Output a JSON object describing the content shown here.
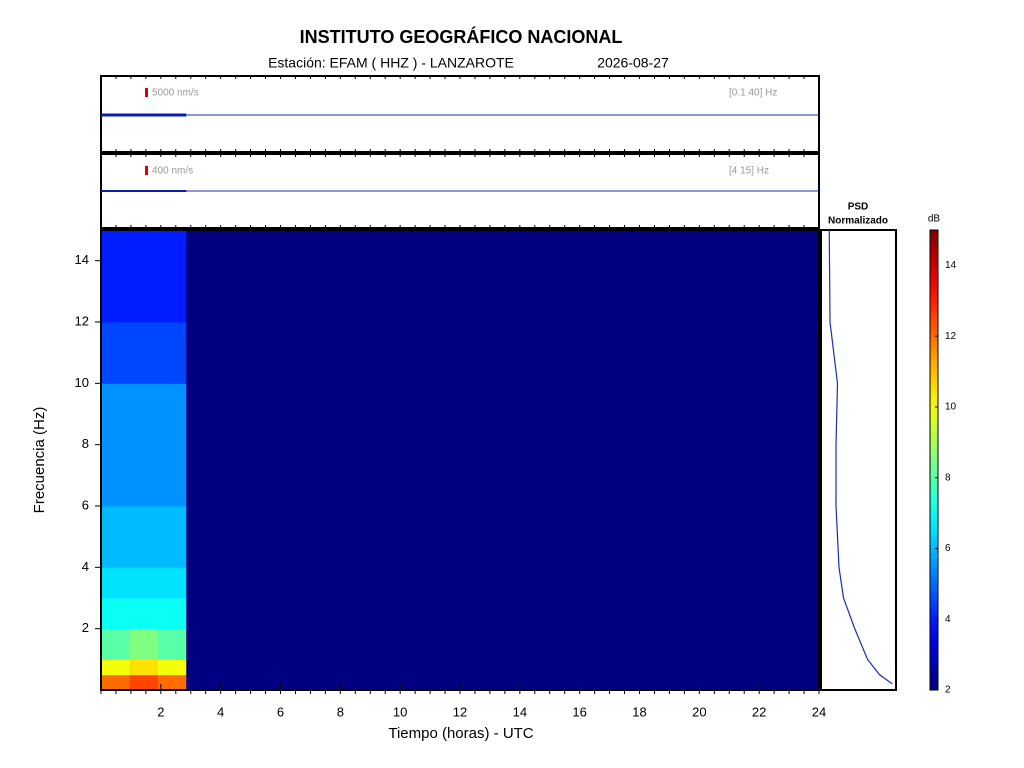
{
  "chart_data": {
    "type": "spectrogram",
    "title": "INSTITUTO GEOGRÁFICO NACIONAL",
    "station": "Estación:  EFAM ( HHZ ) - LANZAROTE",
    "date": "2026-08-27",
    "xlabel": "Tiempo (horas) - UTC",
    "ylabel": "Frecuencia  (Hz)",
    "xlim": [
      0,
      24
    ],
    "xticks": [
      2,
      4,
      6,
      8,
      10,
      12,
      14,
      16,
      18,
      20,
      22,
      24
    ],
    "ylim": [
      0,
      15
    ],
    "yticks": [
      2,
      4,
      6,
      8,
      10,
      12,
      14
    ],
    "time_bins": [
      0,
      0.95,
      1.9,
      2.85,
      24
    ],
    "freq_bins": [
      0,
      0.5,
      1,
      2,
      3,
      4,
      6,
      8,
      10,
      12,
      15
    ],
    "z": [
      [
        12,
        12.5,
        12,
        2
      ],
      [
        10,
        10.5,
        10,
        2
      ],
      [
        8,
        8.5,
        8,
        2
      ],
      [
        7,
        7,
        7,
        2
      ],
      [
        6.5,
        6.5,
        6.5,
        2
      ],
      [
        6,
        6,
        6,
        2
      ],
      [
        5.5,
        5.5,
        5.5,
        2
      ],
      [
        5.5,
        5.5,
        5.5,
        2
      ],
      [
        4.5,
        4.5,
        4.5,
        2
      ],
      [
        4,
        4,
        4,
        2
      ]
    ],
    "traces": [
      {
        "scale_label": "5000 nm/s",
        "band_label": "[0.1 40] Hz",
        "data_span": [
          0,
          2.85
        ]
      },
      {
        "scale_label": "400 nm/s",
        "band_label": "[4 15] Hz",
        "data_span": [
          0,
          2.85
        ]
      }
    ],
    "psd": {
      "title": "PSD",
      "subtitle": "Normalizado",
      "xlim": [
        0,
        1
      ],
      "freq": [
        0.2,
        0.5,
        1,
        2,
        3,
        4,
        5,
        6,
        8,
        10,
        12,
        15
      ],
      "values": [
        0.95,
        0.78,
        0.62,
        0.45,
        0.3,
        0.24,
        0.22,
        0.2,
        0.2,
        0.22,
        0.12,
        0.11
      ]
    },
    "colorbar": {
      "label": "dB",
      "lim": [
        2,
        15
      ],
      "ticks": [
        2,
        4,
        6,
        8,
        10,
        12,
        14
      ]
    }
  }
}
